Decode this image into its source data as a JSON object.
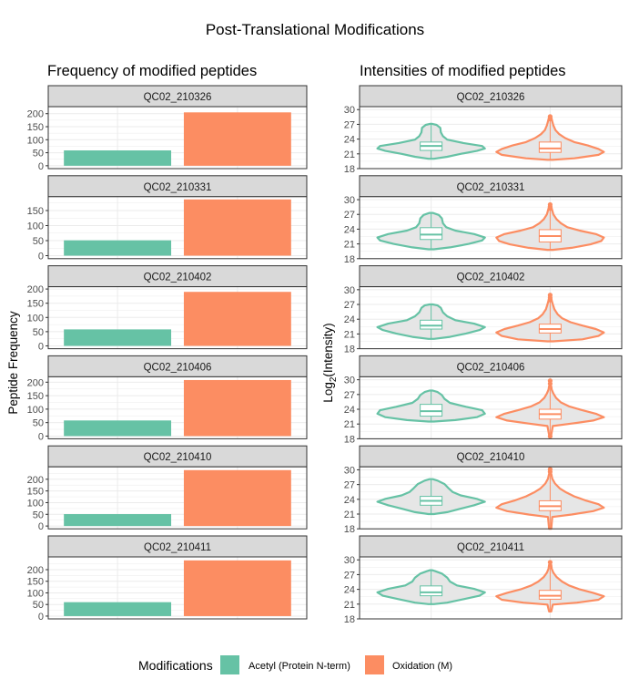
{
  "figure": {
    "title": "Post-Translational Modifications",
    "left_title": "Frequency of modified peptides",
    "right_title": "Intensities of modified peptides",
    "left_ylabel": "Peptide Frequency",
    "right_ylabel_base": "Log",
    "right_ylabel_sub": "2",
    "right_ylabel_rest": "(Intensity)"
  },
  "legend": {
    "title": "Modifications",
    "items": [
      {
        "label": "Acetyl (Protein N-term)",
        "color": "#66c2a5"
      },
      {
        "label": "Oxidation (M)",
        "color": "#fc8d62"
      }
    ]
  },
  "colors": {
    "acetyl": "#66c2a5",
    "oxidation": "#fc8d62",
    "strip_fill": "#d9d9d9",
    "violin_fill": "#e6e6e6",
    "grid": "#ebebeb",
    "panel_border": "#333333"
  },
  "chart_data": [
    {
      "type": "bar",
      "title": "Frequency of modified peptides",
      "ylabel": "Peptide Frequency",
      "categories": [
        "Acetyl (Protein N-term)",
        "Oxidation (M)"
      ],
      "yticks": [
        0,
        50,
        100,
        150,
        200
      ],
      "grid": true,
      "legend": "bottom",
      "facets": [
        {
          "sample": "QC02_210326",
          "ylim": [
            -11,
            227
          ],
          "values": [
            59,
            205
          ]
        },
        {
          "sample": "QC02_210331",
          "ylim": [
            -10,
            196
          ],
          "values": [
            51,
            187
          ]
        },
        {
          "sample": "QC02_210402",
          "ylim": [
            -10,
            208
          ],
          "values": [
            58,
            190
          ]
        },
        {
          "sample": "QC02_210406",
          "ylim": [
            -10,
            220
          ],
          "values": [
            58,
            208
          ]
        },
        {
          "sample": "QC02_210410",
          "ylim": [
            -12,
            253
          ],
          "values": [
            51,
            239
          ]
        },
        {
          "sample": "QC02_210411",
          "ylim": [
            -12,
            255
          ],
          "values": [
            60,
            240
          ]
        }
      ]
    },
    {
      "type": "violin",
      "title": "Intensities of modified peptides",
      "ylabel": "Log2(Intensity)",
      "categories": [
        "Acetyl (Protein N-term)",
        "Oxidation (M)"
      ],
      "yticks": [
        18,
        21,
        24,
        27,
        30
      ],
      "ylim": [
        18,
        30.6
      ],
      "grid": true,
      "facets": [
        {
          "sample": "QC02_210326",
          "groups": [
            {
              "name": "Acetyl (Protein N-term)",
              "min": 20.0,
              "q1": 21.7,
              "median": 22.6,
              "q3": 23.4,
              "max": 27.1,
              "outliers": [],
              "profile": [
                [
                  20.0,
                  0.05
                ],
                [
                  20.4,
                  0.3
                ],
                [
                  21.0,
                  0.55
                ],
                [
                  21.6,
                  0.85
                ],
                [
                  22.1,
                  1.0
                ],
                [
                  22.6,
                  0.95
                ],
                [
                  23.2,
                  0.6
                ],
                [
                  23.9,
                  0.3
                ],
                [
                  24.6,
                  0.22
                ],
                [
                  25.4,
                  0.18
                ],
                [
                  26.3,
                  0.17
                ],
                [
                  26.9,
                  0.1
                ],
                [
                  27.1,
                  0.02
                ]
              ]
            },
            {
              "name": "Oxidation (M)",
              "min": 19.8,
              "q1": 21.3,
              "median": 22.1,
              "q3": 23.4,
              "max": 28.5,
              "outliers": [
                28.1,
                28.6
              ],
              "profile": [
                [
                  19.8,
                  0.05
                ],
                [
                  20.1,
                  0.45
                ],
                [
                  20.8,
                  0.9
                ],
                [
                  21.4,
                  1.0
                ],
                [
                  22.0,
                  0.9
                ],
                [
                  22.7,
                  0.7
                ],
                [
                  23.4,
                  0.45
                ],
                [
                  24.2,
                  0.28
                ],
                [
                  25.0,
                  0.17
                ],
                [
                  25.8,
                  0.1
                ],
                [
                  26.8,
                  0.06
                ],
                [
                  27.6,
                  0.04
                ],
                [
                  28.5,
                  0.02
                ]
              ]
            }
          ]
        },
        {
          "sample": "QC02_210331",
          "groups": [
            {
              "name": "Acetyl (Protein N-term)",
              "min": 19.9,
              "q1": 21.9,
              "median": 22.9,
              "q3": 24.3,
              "max": 27.3,
              "outliers": [],
              "profile": [
                [
                  19.9,
                  0.05
                ],
                [
                  20.3,
                  0.35
                ],
                [
                  21.0,
                  0.7
                ],
                [
                  21.7,
                  0.95
                ],
                [
                  22.3,
                  1.0
                ],
                [
                  23.0,
                  0.8
                ],
                [
                  23.7,
                  0.45
                ],
                [
                  24.4,
                  0.28
                ],
                [
                  25.2,
                  0.22
                ],
                [
                  26.2,
                  0.2
                ],
                [
                  26.9,
                  0.14
                ],
                [
                  27.3,
                  0.03
                ]
              ]
            },
            {
              "name": "Oxidation (M)",
              "min": 19.8,
              "q1": 21.4,
              "median": 22.6,
              "q3": 23.9,
              "max": 28.6,
              "outliers": [
                28.2,
                28.6,
                29.0
              ],
              "profile": [
                [
                  19.8,
                  0.05
                ],
                [
                  20.2,
                  0.4
                ],
                [
                  20.9,
                  0.75
                ],
                [
                  21.6,
                  0.95
                ],
                [
                  22.3,
                  1.0
                ],
                [
                  23.0,
                  0.85
                ],
                [
                  23.7,
                  0.55
                ],
                [
                  24.4,
                  0.32
                ],
                [
                  25.2,
                  0.2
                ],
                [
                  26.0,
                  0.12
                ],
                [
                  27.0,
                  0.06
                ],
                [
                  27.8,
                  0.04
                ],
                [
                  28.6,
                  0.02
                ]
              ]
            }
          ]
        },
        {
          "sample": "QC02_210402",
          "groups": [
            {
              "name": "Acetyl (Protein N-term)",
              "min": 20.0,
              "q1": 22.0,
              "median": 22.7,
              "q3": 23.8,
              "max": 27.0,
              "outliers": [],
              "profile": [
                [
                  20.0,
                  0.05
                ],
                [
                  20.4,
                  0.35
                ],
                [
                  21.1,
                  0.65
                ],
                [
                  21.8,
                  0.9
                ],
                [
                  22.4,
                  1.0
                ],
                [
                  23.1,
                  0.8
                ],
                [
                  23.8,
                  0.45
                ],
                [
                  24.6,
                  0.3
                ],
                [
                  25.4,
                  0.22
                ],
                [
                  26.3,
                  0.18
                ],
                [
                  26.8,
                  0.12
                ],
                [
                  27.0,
                  0.03
                ]
              ]
            },
            {
              "name": "Oxidation (M)",
              "min": 19.5,
              "q1": 21.2,
              "median": 22.0,
              "q3": 23.0,
              "max": 28.4,
              "outliers": [
                27.9,
                28.4,
                28.9
              ],
              "profile": [
                [
                  19.5,
                  0.05
                ],
                [
                  19.9,
                  0.6
                ],
                [
                  20.6,
                  0.9
                ],
                [
                  21.3,
                  1.0
                ],
                [
                  22.0,
                  0.85
                ],
                [
                  22.7,
                  0.6
                ],
                [
                  23.4,
                  0.38
                ],
                [
                  24.2,
                  0.22
                ],
                [
                  25.0,
                  0.14
                ],
                [
                  26.0,
                  0.08
                ],
                [
                  27.0,
                  0.05
                ],
                [
                  27.8,
                  0.03
                ],
                [
                  28.4,
                  0.02
                ]
              ]
            }
          ]
        },
        {
          "sample": "QC02_210406",
          "groups": [
            {
              "name": "Acetyl (Protein N-term)",
              "min": 21.5,
              "q1": 22.6,
              "median": 23.6,
              "q3": 25.0,
              "max": 27.8,
              "outliers": [],
              "profile": [
                [
                  21.5,
                  0.05
                ],
                [
                  21.8,
                  0.45
                ],
                [
                  22.4,
                  0.85
                ],
                [
                  23.1,
                  1.0
                ],
                [
                  23.8,
                  0.95
                ],
                [
                  24.5,
                  0.65
                ],
                [
                  25.3,
                  0.35
                ],
                [
                  26.1,
                  0.25
                ],
                [
                  26.9,
                  0.2
                ],
                [
                  27.5,
                  0.12
                ],
                [
                  27.8,
                  0.03
                ]
              ]
            },
            {
              "name": "Oxidation (M)",
              "min": 18.8,
              "q1": 22.0,
              "median": 23.0,
              "q3": 24.0,
              "max": 28.7,
              "outliers": [
                18.5,
                29.2,
                29.8
              ],
              "profile": [
                [
                  18.8,
                  0.02
                ],
                [
                  20.6,
                  0.05
                ],
                [
                  21.1,
                  0.4
                ],
                [
                  21.7,
                  0.8
                ],
                [
                  22.4,
                  1.0
                ],
                [
                  23.1,
                  0.85
                ],
                [
                  23.8,
                  0.6
                ],
                [
                  24.6,
                  0.35
                ],
                [
                  25.4,
                  0.2
                ],
                [
                  26.3,
                  0.11
                ],
                [
                  27.2,
                  0.06
                ],
                [
                  28.0,
                  0.03
                ],
                [
                  28.7,
                  0.02
                ]
              ]
            }
          ]
        },
        {
          "sample": "QC02_210410",
          "groups": [
            {
              "name": "Acetyl (Protein N-term)",
              "min": 21.0,
              "q1": 22.8,
              "median": 23.7,
              "q3": 24.6,
              "max": 28.1,
              "outliers": [],
              "profile": [
                [
                  21.0,
                  0.05
                ],
                [
                  21.4,
                  0.3
                ],
                [
                  22.1,
                  0.55
                ],
                [
                  22.8,
                  0.8
                ],
                [
                  23.5,
                  1.0
                ],
                [
                  24.1,
                  0.85
                ],
                [
                  24.8,
                  0.55
                ],
                [
                  25.5,
                  0.4
                ],
                [
                  26.3,
                  0.32
                ],
                [
                  27.1,
                  0.25
                ],
                [
                  27.8,
                  0.12
                ],
                [
                  28.1,
                  0.03
                ]
              ]
            },
            {
              "name": "Oxidation (M)",
              "min": 18.0,
              "q1": 21.7,
              "median": 22.6,
              "q3": 23.7,
              "max": 29.2,
              "outliers": [
                29.6,
                30.1
              ],
              "profile": [
                [
                  18.0,
                  0.02
                ],
                [
                  20.4,
                  0.04
                ],
                [
                  20.9,
                  0.4
                ],
                [
                  21.6,
                  0.8
                ],
                [
                  22.3,
                  1.0
                ],
                [
                  23.0,
                  0.9
                ],
                [
                  23.8,
                  0.65
                ],
                [
                  24.6,
                  0.45
                ],
                [
                  25.4,
                  0.3
                ],
                [
                  26.2,
                  0.18
                ],
                [
                  27.2,
                  0.09
                ],
                [
                  28.2,
                  0.04
                ],
                [
                  29.2,
                  0.02
                ]
              ]
            }
          ]
        },
        {
          "sample": "QC02_210411",
          "groups": [
            {
              "name": "Acetyl (Protein N-term)",
              "min": 21.0,
              "q1": 22.7,
              "median": 23.4,
              "q3": 24.7,
              "max": 27.9,
              "outliers": [],
              "profile": [
                [
                  21.0,
                  0.05
                ],
                [
                  21.3,
                  0.3
                ],
                [
                  22.0,
                  0.6
                ],
                [
                  22.7,
                  0.9
                ],
                [
                  23.4,
                  1.0
                ],
                [
                  24.1,
                  0.8
                ],
                [
                  24.8,
                  0.48
                ],
                [
                  25.6,
                  0.35
                ],
                [
                  26.4,
                  0.3
                ],
                [
                  27.2,
                  0.2
                ],
                [
                  27.7,
                  0.08
                ],
                [
                  27.9,
                  0.02
                ]
              ]
            },
            {
              "name": "Oxidation (M)",
              "min": 19.5,
              "q1": 22.0,
              "median": 22.7,
              "q3": 23.8,
              "max": 29.0,
              "outliers": [
                29.5
              ],
              "profile": [
                [
                  19.5,
                  0.02
                ],
                [
                  20.9,
                  0.05
                ],
                [
                  21.3,
                  0.5
                ],
                [
                  21.9,
                  0.9
                ],
                [
                  22.6,
                  1.0
                ],
                [
                  23.3,
                  0.8
                ],
                [
                  24.0,
                  0.55
                ],
                [
                  24.8,
                  0.35
                ],
                [
                  25.6,
                  0.22
                ],
                [
                  26.5,
                  0.12
                ],
                [
                  27.4,
                  0.06
                ],
                [
                  28.2,
                  0.03
                ],
                [
                  29.0,
                  0.02
                ]
              ]
            }
          ]
        }
      ]
    }
  ]
}
